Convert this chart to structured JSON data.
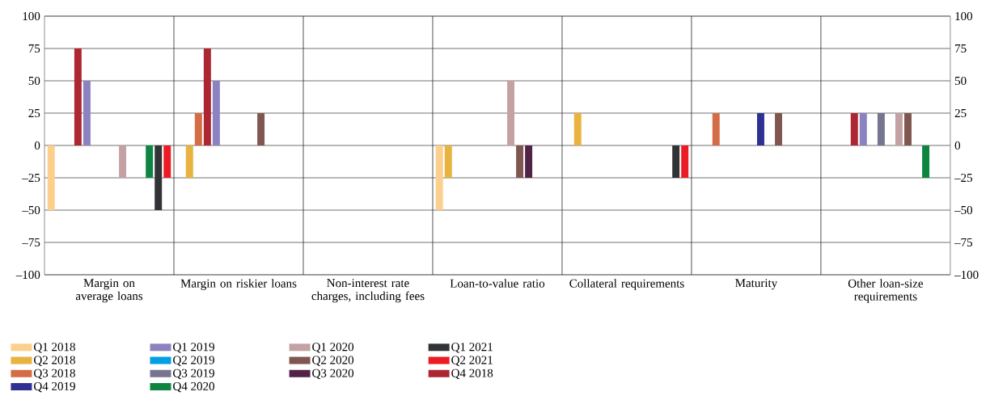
{
  "chart_data": {
    "type": "bar",
    "categories": [
      "Margin on average loans",
      "Margin on riskier loans",
      "Non-interest rate charges, including fees",
      "Loan-to-value ratio",
      "Collateral requirements",
      "Maturity",
      "Other loan-size requirements"
    ],
    "series": [
      {
        "name": "Q1 2018",
        "color": "#fccf8c",
        "values": [
          -50,
          null,
          null,
          -50,
          null,
          null,
          null
        ]
      },
      {
        "name": "Q2 2018",
        "color": "#e8b33f",
        "values": [
          null,
          -25,
          null,
          -25,
          25,
          null,
          null
        ]
      },
      {
        "name": "Q3 2018",
        "color": "#d46d45",
        "values": [
          null,
          25,
          null,
          null,
          null,
          25,
          null
        ]
      },
      {
        "name": "Q4 2018",
        "color": "#ad2733",
        "values": [
          75,
          75,
          null,
          null,
          null,
          null,
          25
        ]
      },
      {
        "name": "Q1 2019",
        "color": "#8a83c0",
        "values": [
          50,
          50,
          null,
          null,
          null,
          null,
          25
        ]
      },
      {
        "name": "Q2 2019",
        "color": "#009fe3",
        "values": [
          null,
          null,
          null,
          null,
          null,
          null,
          null
        ]
      },
      {
        "name": "Q3 2019",
        "color": "#76758f",
        "values": [
          null,
          null,
          null,
          null,
          null,
          null,
          25
        ]
      },
      {
        "name": "Q4 2019",
        "color": "#2e3192",
        "values": [
          null,
          null,
          null,
          null,
          null,
          25,
          null
        ]
      },
      {
        "name": "Q1 2020",
        "color": "#c4a2a4",
        "values": [
          -25,
          null,
          null,
          50,
          null,
          null,
          25
        ]
      },
      {
        "name": "Q2 2020",
        "color": "#805750",
        "values": [
          null,
          25,
          null,
          -25,
          null,
          25,
          25
        ]
      },
      {
        "name": "Q3 2020",
        "color": "#512346",
        "values": [
          null,
          null,
          null,
          -25,
          null,
          null,
          null
        ]
      },
      {
        "name": "Q4 2020",
        "color": "#0d8541",
        "values": [
          -25,
          null,
          null,
          null,
          null,
          null,
          -25
        ]
      },
      {
        "name": "Q1 2021",
        "color": "#323337",
        "values": [
          -50,
          null,
          null,
          null,
          -25,
          null,
          null
        ]
      },
      {
        "name": "Q2 2021",
        "color": "#ec1c24",
        "values": [
          -25,
          null,
          null,
          null,
          -25,
          null,
          null
        ]
      }
    ],
    "ylim": [
      -100,
      100
    ],
    "yticks": [
      {
        "value": -100,
        "label": "–100"
      },
      {
        "value": -75,
        "label": "–75"
      },
      {
        "value": -50,
        "label": "–50"
      },
      {
        "value": -25,
        "label": "–25"
      },
      0,
      25,
      50,
      75,
      100
    ],
    "y2lim": [
      -100,
      100
    ],
    "y2ticks": [
      {
        "value": -100,
        "label": "–100"
      },
      {
        "value": -75,
        "label": "–75"
      },
      {
        "value": -50,
        "label": "–50"
      },
      {
        "value": -25,
        "label": "–25"
      },
      0,
      25,
      50,
      75,
      100
    ],
    "grid": "y",
    "legend": "bottom"
  }
}
